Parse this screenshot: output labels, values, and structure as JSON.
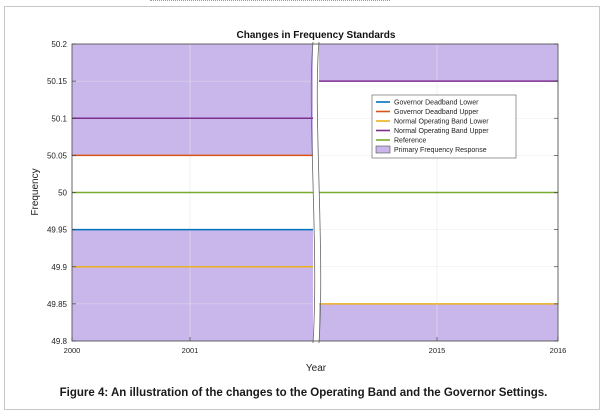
{
  "figure": {
    "caption": "Figure 4: An illustration of the changes to the Operating Band and the Governor Settings."
  },
  "chart_data": {
    "type": "line",
    "title": "Changes in Frequency Standards",
    "xlabel": "Year",
    "ylabel": "Frequency",
    "ylim": [
      49.8,
      50.2
    ],
    "yticks": [
      "49.8",
      "49.85",
      "49.9",
      "49.95",
      "50",
      "50.05",
      "50.1",
      "50.15",
      "50.2"
    ],
    "grid": true,
    "legend_position": "top-right",
    "panels": [
      {
        "xticks": [
          "2000",
          "2001"
        ],
        "lines": {
          "governor_deadband_lower": 49.95,
          "governor_deadband_upper": 50.05,
          "normal_operating_band_lower": 49.9,
          "normal_operating_band_upper": 50.1,
          "reference": 50.0
        },
        "primary_frequency_response": [
          [
            49.8,
            49.95
          ],
          [
            50.05,
            50.2
          ]
        ]
      },
      {
        "xticks": [
          "2015",
          "2016"
        ],
        "lines": {
          "normal_operating_band_lower": 49.85,
          "normal_operating_band_upper": 50.15,
          "reference": 50.0
        },
        "primary_frequency_response": [
          [
            49.8,
            49.85
          ],
          [
            50.15,
            50.2
          ]
        ]
      }
    ],
    "series": [
      {
        "name": "Governor Deadband Lower",
        "color": "#0072bd"
      },
      {
        "name": "Governor Deadband Upper",
        "color": "#d95319"
      },
      {
        "name": "Normal Operating Band Lower",
        "color": "#edb120"
      },
      {
        "name": "Normal Operating Band Upper",
        "color": "#7e2f8e"
      },
      {
        "name": "Reference",
        "color": "#77ac30"
      },
      {
        "name": "Primary Frequency Response",
        "color": "#c9b6ea"
      }
    ],
    "fill_color": "#c9b6ea",
    "axis_break_color": "#ffffff"
  }
}
